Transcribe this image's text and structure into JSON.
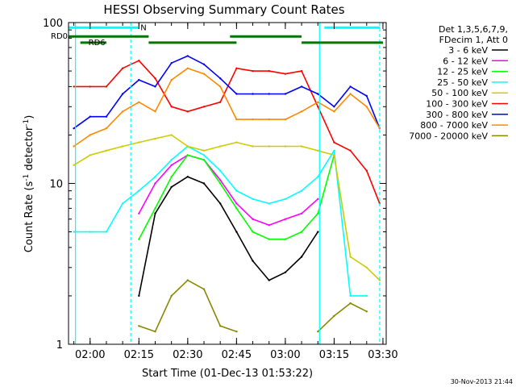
{
  "chart_data": {
    "type": "line",
    "title": "HESSI Observing Summary Count Rates",
    "xlabel": "Start Time (01-Dec-13 01:53:22)",
    "ylabel_parts": [
      "Count Rate (s",
      "-1",
      " detector",
      "-1",
      ")"
    ],
    "yscale": "log",
    "ylim": [
      1,
      100
    ],
    "xlim": [
      "01:53:22",
      "03:31:00"
    ],
    "x_ticks": [
      "02:00",
      "02:15",
      "02:30",
      "02:45",
      "03:00",
      "03:15",
      "03:30"
    ],
    "y_ticks": [
      "1",
      "10",
      "100"
    ],
    "legend_header": [
      "Det 1,3,5,6,7,9,",
      "FDecim 1, Att 0"
    ],
    "legend_placement": "right",
    "timestamp": "30-Nov-2013 21:44",
    "flags": [
      {
        "label": "N",
        "color": "#00ffff",
        "segments": [
          [
            "01:53:22",
            "02:15:00"
          ],
          [
            "03:12:00",
            "03:29:00"
          ]
        ],
        "level": 93
      },
      {
        "label": "RD0",
        "color": "#007700",
        "segments": [
          [
            "01:53:22",
            "02:18:00"
          ],
          [
            "02:43:00",
            "03:05:00"
          ]
        ],
        "level": 82
      },
      {
        "label": "RD6",
        "color": "#007700",
        "segments": [
          [
            "01:57:00",
            "02:05:00"
          ],
          [
            "02:18:00",
            "02:45:00"
          ],
          [
            "03:05:00",
            "03:30:00"
          ]
        ],
        "level": 75
      }
    ],
    "night_boundaries": [
      {
        "time": "01:55:30",
        "style": "solid"
      },
      {
        "time": "02:12:30",
        "style": "dashed"
      },
      {
        "time": "03:10:30",
        "style": "solid"
      },
      {
        "time": "03:29:00",
        "style": "dashed"
      }
    ],
    "x": [
      "01:55",
      "02:00",
      "02:05",
      "02:10",
      "02:15",
      "02:20",
      "02:25",
      "02:30",
      "02:35",
      "02:40",
      "02:45",
      "02:50",
      "02:55",
      "03:00",
      "03:05",
      "03:10",
      "03:15",
      "03:20",
      "03:25",
      "03:29"
    ],
    "series": [
      {
        "name": "3 - 6 keV",
        "color": "#000000",
        "values": [
          null,
          null,
          null,
          null,
          2.0,
          6.5,
          9.5,
          11,
          10,
          7.5,
          5.0,
          3.3,
          2.5,
          2.8,
          3.5,
          5.0,
          null,
          null,
          null,
          null
        ]
      },
      {
        "name": "6 - 12 keV",
        "color": "#ff00ff",
        "values": [
          null,
          null,
          null,
          null,
          6.5,
          10,
          13,
          15,
          14,
          10.5,
          7.5,
          6.0,
          5.5,
          6.0,
          6.5,
          8.0,
          null,
          null,
          null,
          null
        ]
      },
      {
        "name": "12 - 25 keV",
        "color": "#00ff00",
        "values": [
          null,
          null,
          null,
          null,
          4.5,
          7.0,
          11,
          15,
          14,
          10,
          7.0,
          5.0,
          4.5,
          4.5,
          5.0,
          6.5,
          15,
          null,
          null,
          null
        ]
      },
      {
        "name": "25 - 50 keV",
        "color": "#00ffff",
        "values": [
          5.0,
          5.0,
          5.0,
          7.5,
          9.0,
          11,
          14,
          17,
          15,
          12,
          9.0,
          8.0,
          7.5,
          8.0,
          9.0,
          11,
          16,
          2.0,
          2.0,
          null
        ]
      },
      {
        "name": "50 - 100 keV",
        "color": "#cccc00",
        "values": [
          13,
          15,
          16,
          17,
          18,
          19,
          20,
          17,
          16,
          17,
          18,
          17,
          17,
          17,
          17,
          16,
          15,
          3.5,
          3.0,
          2.5
        ]
      },
      {
        "name": "100 - 300 keV",
        "color": "#ff0000",
        "values": [
          40,
          40,
          40,
          52,
          58,
          45,
          30,
          28,
          30,
          32,
          52,
          50,
          50,
          48,
          50,
          30,
          18,
          16,
          12,
          7.5
        ]
      },
      {
        "name": "300 - 800 keV",
        "color": "#0000ff",
        "values": [
          22,
          26,
          26,
          36,
          44,
          40,
          56,
          62,
          55,
          45,
          36,
          36,
          36,
          36,
          40,
          36,
          30,
          40,
          35,
          22
        ]
      },
      {
        "name": "800 - 7000 keV",
        "color": "#ff8800",
        "values": [
          17,
          20,
          22,
          28,
          32,
          28,
          44,
          52,
          48,
          40,
          25,
          25,
          25,
          25,
          28,
          32,
          28,
          36,
          30,
          22
        ]
      },
      {
        "name": "7000 - 20000 keV",
        "color": "#888800",
        "values": [
          null,
          null,
          null,
          null,
          1.3,
          1.2,
          2.0,
          2.5,
          2.2,
          1.3,
          1.2,
          null,
          null,
          null,
          null,
          1.2,
          1.5,
          1.8,
          1.6,
          null
        ]
      }
    ]
  }
}
